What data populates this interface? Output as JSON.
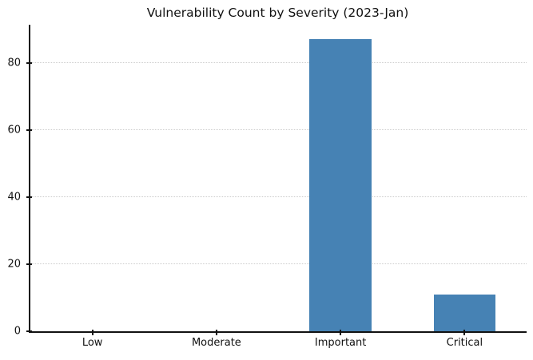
{
  "chart_data": {
    "type": "bar",
    "title": "Vulnerability Count by Severity (2023-Jan)",
    "categories": [
      "Low",
      "Moderate",
      "Important",
      "Critical"
    ],
    "values": [
      0,
      0,
      87,
      11
    ],
    "xlabel": "",
    "ylabel": "",
    "yticks": [
      0,
      20,
      40,
      60,
      80
    ],
    "ylim": [
      0,
      91.35
    ],
    "grid": "horizontal-dotted",
    "legend_position": "none",
    "bar_width_fraction": 0.5,
    "colors": {
      "bar": "#4682b4",
      "grid": "#cccccc",
      "axis": "#111111",
      "text": "#111111",
      "background": "#ffffff"
    }
  }
}
